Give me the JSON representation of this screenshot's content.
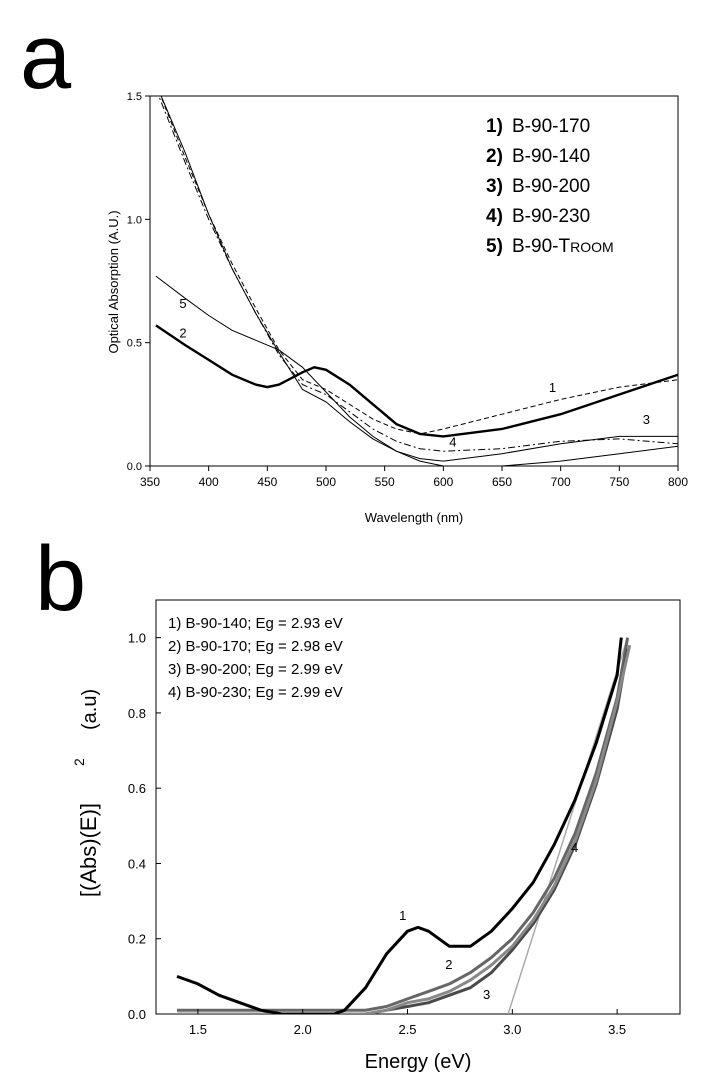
{
  "chart_data": [
    {
      "panel": "a",
      "type": "line",
      "xlabel": "Wavelength (nm)",
      "ylabel": "Optical Absorption (A.U.)",
      "xlim": [
        350,
        800
      ],
      "ylim": [
        0,
        1.5
      ],
      "xticks": [
        350,
        400,
        450,
        500,
        550,
        600,
        650,
        700,
        750,
        800
      ],
      "yticks": [
        0.0,
        0.5,
        1.0,
        1.5
      ],
      "ytick_labels": [
        "0.0",
        "0.5",
        "1.0",
        "1.5"
      ],
      "legend": [
        {
          "num": "1)",
          "name": "B-90-170"
        },
        {
          "num": "2)",
          "name": "B-90-140"
        },
        {
          "num": "3)",
          "name": "B-90-200"
        },
        {
          "num": "4)",
          "name": "B-90-230"
        },
        {
          "num": "5)",
          "name": "B-90-T",
          "suffix": "ROOM"
        }
      ],
      "series": [
        {
          "name": "1",
          "label": "1",
          "label_at": [
            690,
            0.3
          ],
          "style": "dashed",
          "x": [
            355,
            380,
            400,
            420,
            440,
            460,
            480,
            500,
            520,
            540,
            560,
            580,
            600,
            650,
            700,
            750,
            800
          ],
          "y": [
            1.55,
            1.25,
            1.02,
            0.82,
            0.64,
            0.47,
            0.35,
            0.31,
            0.25,
            0.19,
            0.15,
            0.13,
            0.15,
            0.21,
            0.27,
            0.32,
            0.35
          ]
        },
        {
          "name": "2",
          "label": "2",
          "label_at": [
            375,
            0.52
          ],
          "style": "thick",
          "x": [
            355,
            380,
            400,
            420,
            440,
            450,
            460,
            480,
            490,
            500,
            520,
            540,
            560,
            580,
            600,
            650,
            700,
            750,
            800
          ],
          "y": [
            0.57,
            0.49,
            0.43,
            0.37,
            0.33,
            0.32,
            0.33,
            0.38,
            0.4,
            0.39,
            0.33,
            0.25,
            0.17,
            0.13,
            0.12,
            0.15,
            0.21,
            0.29,
            0.37
          ]
        },
        {
          "name": "3",
          "label": "3",
          "label_at": [
            770,
            0.17
          ],
          "style": "solid",
          "x": [
            355,
            380,
            400,
            420,
            440,
            460,
            480,
            500,
            520,
            540,
            560,
            580,
            600,
            650,
            700,
            750,
            800
          ],
          "y": [
            1.55,
            1.27,
            1.02,
            0.8,
            0.62,
            0.46,
            0.31,
            0.26,
            0.18,
            0.11,
            0.06,
            0.03,
            0.02,
            0.05,
            0.09,
            0.12,
            0.12
          ]
        },
        {
          "name": "4",
          "label": "4",
          "label_at": [
            605,
            0.08
          ],
          "style": "dashdot",
          "x": [
            355,
            380,
            400,
            420,
            440,
            460,
            480,
            500,
            520,
            540,
            560,
            580,
            600,
            650,
            700,
            750,
            800
          ],
          "y": [
            1.53,
            1.23,
            1.0,
            0.8,
            0.62,
            0.45,
            0.33,
            0.29,
            0.22,
            0.15,
            0.1,
            0.07,
            0.06,
            0.07,
            0.1,
            0.11,
            0.09
          ]
        },
        {
          "name": "5",
          "label": "5",
          "label_at": [
            375,
            0.64
          ],
          "style": "solid",
          "x": [
            355,
            380,
            400,
            420,
            440,
            460,
            480,
            500,
            520,
            540,
            560,
            580,
            600,
            650,
            700,
            750,
            800
          ],
          "y": [
            0.77,
            0.68,
            0.61,
            0.55,
            0.51,
            0.47,
            0.4,
            0.3,
            0.2,
            0.12,
            0.06,
            0.02,
            0.0,
            0.0,
            0.02,
            0.05,
            0.08
          ]
        }
      ]
    },
    {
      "panel": "b",
      "type": "line",
      "xlabel": "Energy (eV)",
      "ylabel": "[(Abs)(E)]",
      "ylabel_superscript": "2",
      "ylabel_unit": "(a.u)",
      "xlim": [
        1.3,
        3.8
      ],
      "ylim": [
        0,
        1.1
      ],
      "xticks": [
        1.5,
        2.0,
        2.5,
        3.0,
        3.5
      ],
      "xtick_labels": [
        "1.5",
        "2.0",
        "2.5",
        "3.0",
        "3.5"
      ],
      "yticks": [
        0.0,
        0.2,
        0.4,
        0.6,
        0.8,
        1.0
      ],
      "ytick_labels": [
        "0.0",
        "0.2",
        "0.4",
        "0.6",
        "0.8",
        "1.0"
      ],
      "legend": [
        "1) B-90-140; Eg = 2.93 eV",
        "2) B-90-170; Eg = 2.98 eV",
        "3) B-90-200; Eg = 2.99 eV",
        "4) B-90-230; Eg = 2.99 eV"
      ],
      "series": [
        {
          "name": "1",
          "label": "1",
          "label_at": [
            2.46,
            0.25
          ],
          "color": "#000000",
          "x": [
            1.4,
            1.5,
            1.6,
            1.7,
            1.8,
            1.9,
            2.0,
            2.1,
            2.15,
            2.2,
            2.3,
            2.4,
            2.5,
            2.55,
            2.6,
            2.7,
            2.8,
            2.9,
            3.0,
            3.1,
            3.2,
            3.3,
            3.4,
            3.5,
            3.52
          ],
          "y": [
            0.1,
            0.08,
            0.05,
            0.03,
            0.01,
            0.0,
            0.0,
            0.0,
            0.0,
            0.01,
            0.07,
            0.16,
            0.22,
            0.23,
            0.22,
            0.18,
            0.18,
            0.22,
            0.28,
            0.35,
            0.45,
            0.57,
            0.72,
            0.9,
            1.0
          ]
        },
        {
          "name": "2",
          "label": "2",
          "label_at": [
            2.68,
            0.12
          ],
          "color": "#666666",
          "x": [
            1.4,
            2.0,
            2.3,
            2.4,
            2.5,
            2.6,
            2.7,
            2.8,
            2.9,
            3.0,
            3.1,
            3.2,
            3.3,
            3.4,
            3.5,
            3.55
          ],
          "y": [
            0.01,
            0.01,
            0.01,
            0.02,
            0.04,
            0.06,
            0.08,
            0.11,
            0.15,
            0.2,
            0.27,
            0.36,
            0.48,
            0.64,
            0.84,
            1.0
          ]
        },
        {
          "name": "3",
          "label": "3",
          "label_at": [
            2.86,
            0.04
          ],
          "color": "#4a4a4a",
          "x": [
            1.4,
            2.0,
            2.3,
            2.4,
            2.5,
            2.6,
            2.7,
            2.8,
            2.9,
            3.0,
            3.1,
            3.2,
            3.3,
            3.4,
            3.5,
            3.55
          ],
          "y": [
            0.0,
            0.0,
            0.0,
            0.01,
            0.02,
            0.03,
            0.05,
            0.07,
            0.11,
            0.17,
            0.24,
            0.33,
            0.45,
            0.61,
            0.81,
            0.97
          ]
        },
        {
          "name": "4",
          "label": "4",
          "label_at": [
            3.28,
            0.43
          ],
          "color": "#888888",
          "x": [
            1.4,
            2.0,
            2.3,
            2.4,
            2.5,
            2.6,
            2.7,
            2.8,
            2.9,
            3.0,
            3.1,
            3.2,
            3.3,
            3.4,
            3.5,
            3.56
          ],
          "y": [
            0.0,
            0.0,
            0.0,
            0.01,
            0.03,
            0.04,
            0.06,
            0.09,
            0.13,
            0.18,
            0.25,
            0.34,
            0.46,
            0.62,
            0.83,
            0.98
          ]
        },
        {
          "name": "fit",
          "label": "",
          "color": "#aaaaaa",
          "x": [
            2.98,
            3.55
          ],
          "y": [
            0.0,
            1.0
          ]
        }
      ]
    }
  ],
  "panel_labels": {
    "a": "a",
    "b": "b"
  }
}
